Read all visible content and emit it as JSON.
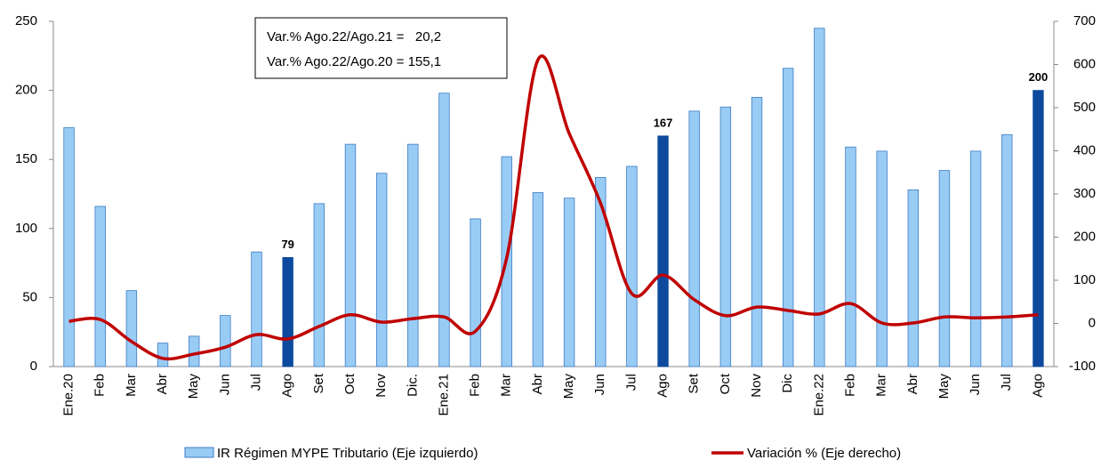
{
  "chart_data": {
    "type": "bar_line",
    "annotation": [
      "Var.% Ago.22/Ago.21 =   20,2",
      "Var.% Ago.22/Ago.20 = 155,1"
    ],
    "categories": [
      "Ene.20",
      "Feb",
      "Mar",
      "Abr",
      "May",
      "Jun",
      "Jul",
      "Ago",
      "Set",
      "Oct",
      "Nov",
      "Dic.",
      "Ene.21",
      "Feb",
      "Mar",
      "Abr",
      "May",
      "Jun",
      "Jul",
      "Ago",
      "Set",
      "Oct",
      "Nov",
      "Dic",
      "Ene.22",
      "Feb",
      "Mar",
      "Abr",
      "May",
      "Jun",
      "Jul",
      "Ago"
    ],
    "series": [
      {
        "name": "IR Régimen MYPE Tributario (Eje izquierdo)",
        "type": "bar",
        "color": "#99ccf5",
        "colors": [
          "#99ccf5",
          "#99ccf5",
          "#99ccf5",
          "#99ccf5",
          "#99ccf5",
          "#99ccf5",
          "#99ccf5",
          "#0d4a9e",
          "#99ccf5",
          "#99ccf5",
          "#99ccf5",
          "#99ccf5",
          "#99ccf5",
          "#99ccf5",
          "#99ccf5",
          "#99ccf5",
          "#99ccf5",
          "#99ccf5",
          "#99ccf5",
          "#0d4a9e",
          "#99ccf5",
          "#99ccf5",
          "#99ccf5",
          "#99ccf5",
          "#99ccf5",
          "#99ccf5",
          "#99ccf5",
          "#99ccf5",
          "#99ccf5",
          "#99ccf5",
          "#99ccf5",
          "#0d4a9e"
        ],
        "values": [
          173,
          116,
          55,
          17,
          22,
          37,
          83,
          79,
          118,
          161,
          140,
          161,
          198,
          107,
          152,
          126,
          122,
          137,
          145,
          167,
          185,
          188,
          195,
          216,
          245,
          159,
          156,
          128,
          142,
          156,
          168,
          200
        ],
        "value_labels": [
          null,
          null,
          null,
          null,
          null,
          null,
          null,
          "79",
          null,
          null,
          null,
          null,
          null,
          null,
          null,
          null,
          null,
          null,
          null,
          "167",
          null,
          null,
          null,
          null,
          null,
          null,
          null,
          null,
          null,
          null,
          null,
          "200"
        ]
      },
      {
        "name": "Variación % (Eje derecho)",
        "type": "line",
        "color": "#c00000",
        "axis": "y2",
        "values": [
          5,
          9,
          -42,
          -81,
          -71,
          -55,
          -26,
          -36,
          -7,
          20,
          3,
          11,
          15,
          -18,
          152,
          611,
          440,
          279,
          69,
          112,
          55,
          18,
          38,
          30,
          22,
          46,
          1,
          1,
          15,
          13,
          15,
          20
        ]
      }
    ],
    "ylim": [
      0,
      250
    ],
    "yticks": [
      0,
      50,
      100,
      150,
      200,
      250
    ],
    "y2lim": [
      -100,
      700
    ],
    "y2ticks": [
      -100,
      0,
      100,
      200,
      300,
      400,
      500,
      600,
      700
    ]
  }
}
